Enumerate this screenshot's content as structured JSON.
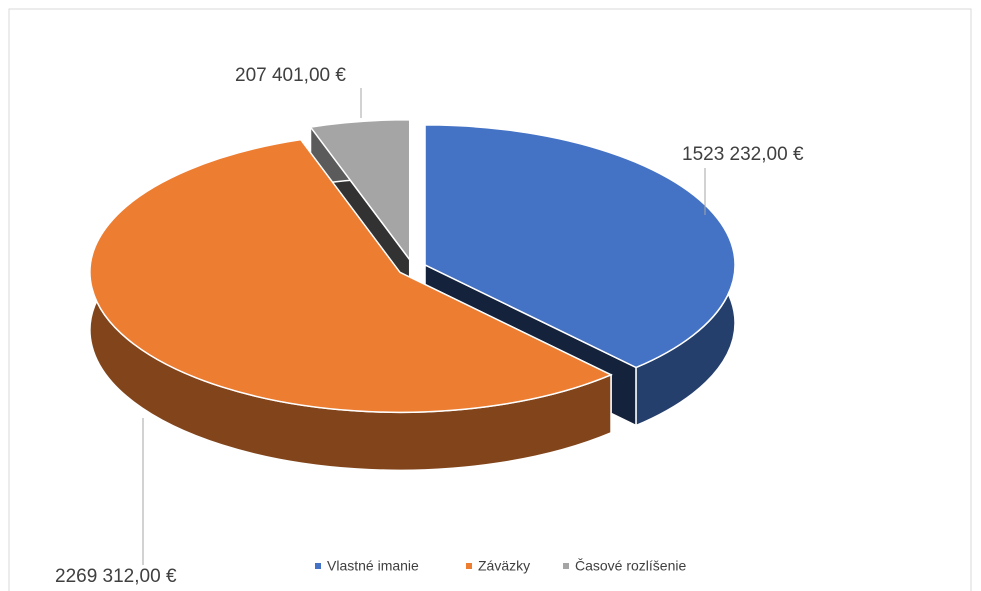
{
  "chart_data": {
    "type": "pie3d",
    "categories": [
      "Vlastné imanie",
      "Záväzky",
      "Časové rozlíšenie"
    ],
    "values": [
      1523232,
      2269312,
      207401
    ],
    "value_labels": [
      "1523 232,00 €",
      "2269 312,00 €",
      "207 401,00 €"
    ],
    "colors": [
      "#4472c4",
      "#ed7d31",
      "#a5a5a5"
    ],
    "legend": "bottom"
  }
}
